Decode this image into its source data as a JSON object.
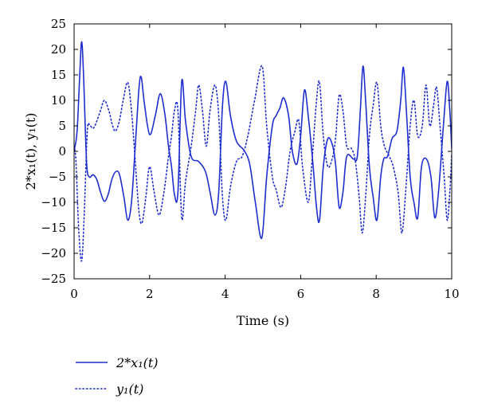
{
  "chart_data": {
    "type": "line",
    "xlabel": "Time (s)",
    "ylabel": "2*x₁(t), y₁(t)",
    "xlim": [
      0,
      10
    ],
    "ylim": [
      -25,
      25
    ],
    "x_ticks": [
      "0",
      "2",
      "4",
      "6",
      "8",
      "10"
    ],
    "y_ticks": [
      "25",
      "20",
      "15",
      "10",
      "5",
      "0",
      "−5",
      "−10",
      "−15",
      "−20",
      "−25"
    ],
    "grid": false,
    "legend_position": "below",
    "series": [
      {
        "name": "2*x₁(t)",
        "style": "solid",
        "color": "#1f2fcf",
        "points": [
          [
            0.0,
            0.0
          ],
          [
            0.08,
            4.0
          ],
          [
            0.15,
            15.0
          ],
          [
            0.2,
            21.5
          ],
          [
            0.25,
            15.0
          ],
          [
            0.33,
            -2.0
          ],
          [
            0.4,
            -5.0
          ],
          [
            0.5,
            -4.6
          ],
          [
            0.6,
            -5.5
          ],
          [
            0.7,
            -8.0
          ],
          [
            0.8,
            -9.8
          ],
          [
            0.9,
            -8.5
          ],
          [
            1.0,
            -5.5
          ],
          [
            1.1,
            -4.0
          ],
          [
            1.2,
            -4.5
          ],
          [
            1.32,
            -9.0
          ],
          [
            1.42,
            -13.5
          ],
          [
            1.52,
            -10.0
          ],
          [
            1.62,
            1.0
          ],
          [
            1.72,
            12.5
          ],
          [
            1.78,
            14.5
          ],
          [
            1.86,
            9.5
          ],
          [
            2.0,
            3.3
          ],
          [
            2.15,
            7.0
          ],
          [
            2.28,
            11.3
          ],
          [
            2.4,
            7.5
          ],
          [
            2.5,
            1.0
          ],
          [
            2.58,
            -3.0
          ],
          [
            2.66,
            -8.5
          ],
          [
            2.75,
            -8.0
          ],
          [
            2.85,
            13.7
          ],
          [
            2.95,
            6.0
          ],
          [
            3.1,
            -1.0
          ],
          [
            3.3,
            -2.0
          ],
          [
            3.48,
            -4.0
          ],
          [
            3.6,
            -8.0
          ],
          [
            3.73,
            -12.5
          ],
          [
            3.83,
            -8.0
          ],
          [
            3.93,
            9.0
          ],
          [
            4.02,
            13.7
          ],
          [
            4.14,
            7.0
          ],
          [
            4.3,
            2.0
          ],
          [
            4.5,
            0.2
          ],
          [
            4.65,
            -2.5
          ],
          [
            4.8,
            -10.0
          ],
          [
            4.97,
            -17.0
          ],
          [
            5.1,
            -5.0
          ],
          [
            5.25,
            5.0
          ],
          [
            5.35,
            7.0
          ],
          [
            5.45,
            8.5
          ],
          [
            5.55,
            10.5
          ],
          [
            5.68,
            7.0
          ],
          [
            5.78,
            0.0
          ],
          [
            5.9,
            -2.5
          ],
          [
            6.0,
            3.0
          ],
          [
            6.1,
            12.0
          ],
          [
            6.2,
            7.0
          ],
          [
            6.32,
            -2.0
          ],
          [
            6.42,
            -11.0
          ],
          [
            6.5,
            -13.5
          ],
          [
            6.6,
            -3.0
          ],
          [
            6.72,
            2.5
          ],
          [
            6.85,
            1.0
          ],
          [
            6.93,
            -3.0
          ],
          [
            7.02,
            -11.0
          ],
          [
            7.12,
            -8.0
          ],
          [
            7.22,
            -1.0
          ],
          [
            7.4,
            -1.5
          ],
          [
            7.5,
            -1.0
          ],
          [
            7.58,
            8.0
          ],
          [
            7.65,
            16.7
          ],
          [
            7.72,
            10.0
          ],
          [
            7.82,
            -3.0
          ],
          [
            7.92,
            -9.0
          ],
          [
            8.02,
            -13.5
          ],
          [
            8.12,
            -5.0
          ],
          [
            8.2,
            -1.5
          ],
          [
            8.3,
            -1.0
          ],
          [
            8.42,
            2.5
          ],
          [
            8.55,
            4.0
          ],
          [
            8.65,
            10.0
          ],
          [
            8.72,
            16.5
          ],
          [
            8.8,
            8.0
          ],
          [
            8.9,
            -5.0
          ],
          [
            9.0,
            -10.0
          ],
          [
            9.1,
            -13.0
          ],
          [
            9.2,
            -3.0
          ],
          [
            9.33,
            -1.5
          ],
          [
            9.45,
            -5.0
          ],
          [
            9.55,
            -13.0
          ],
          [
            9.65,
            -8.0
          ],
          [
            9.78,
            5.0
          ],
          [
            9.88,
            13.7
          ],
          [
            9.95,
            8.0
          ],
          [
            10.0,
            0.5
          ]
        ]
      },
      {
        "name": "y₁(t)",
        "style": "dotted",
        "color": "#1f2fcf",
        "points": [
          [
            0.0,
            1.0
          ],
          [
            0.05,
            -2.0
          ],
          [
            0.12,
            -15.0
          ],
          [
            0.2,
            -21.5
          ],
          [
            0.27,
            -12.0
          ],
          [
            0.35,
            4.0
          ],
          [
            0.42,
            5.0
          ],
          [
            0.5,
            4.5
          ],
          [
            0.58,
            5.5
          ],
          [
            0.7,
            8.0
          ],
          [
            0.8,
            10.0
          ],
          [
            0.92,
            8.0
          ],
          [
            1.02,
            5.0
          ],
          [
            1.1,
            4.0
          ],
          [
            1.2,
            6.0
          ],
          [
            1.3,
            10.0
          ],
          [
            1.42,
            13.5
          ],
          [
            1.52,
            8.0
          ],
          [
            1.62,
            -2.0
          ],
          [
            1.72,
            -12.0
          ],
          [
            1.8,
            -14.0
          ],
          [
            1.9,
            -9.0
          ],
          [
            2.0,
            -3.0
          ],
          [
            2.12,
            -8.0
          ],
          [
            2.25,
            -12.5
          ],
          [
            2.38,
            -8.0
          ],
          [
            2.5,
            -1.0
          ],
          [
            2.58,
            3.0
          ],
          [
            2.66,
            8.0
          ],
          [
            2.75,
            8.0
          ],
          [
            2.85,
            -13.0
          ],
          [
            2.95,
            -6.0
          ],
          [
            3.1,
            1.0
          ],
          [
            3.22,
            8.0
          ],
          [
            3.3,
            13.0
          ],
          [
            3.4,
            8.0
          ],
          [
            3.5,
            1.0
          ],
          [
            3.6,
            8.0
          ],
          [
            3.73,
            13.0
          ],
          [
            3.83,
            7.0
          ],
          [
            3.93,
            -9.0
          ],
          [
            4.02,
            -13.5
          ],
          [
            4.14,
            -7.0
          ],
          [
            4.3,
            -2.0
          ],
          [
            4.45,
            -1.0
          ],
          [
            4.6,
            3.0
          ],
          [
            4.78,
            10.0
          ],
          [
            4.98,
            16.7
          ],
          [
            5.1,
            5.0
          ],
          [
            5.25,
            -5.0
          ],
          [
            5.35,
            -7.5
          ],
          [
            5.48,
            -11.0
          ],
          [
            5.6,
            -7.0
          ],
          [
            5.72,
            0.0
          ],
          [
            5.85,
            4.0
          ],
          [
            5.95,
            6.0
          ],
          [
            6.05,
            -3.0
          ],
          [
            6.2,
            -10.0
          ],
          [
            6.3,
            -2.0
          ],
          [
            6.42,
            10.0
          ],
          [
            6.5,
            13.5
          ],
          [
            6.6,
            3.0
          ],
          [
            6.72,
            -3.0
          ],
          [
            6.85,
            -1.0
          ],
          [
            6.93,
            3.0
          ],
          [
            7.02,
            11.0
          ],
          [
            7.12,
            8.0
          ],
          [
            7.22,
            1.0
          ],
          [
            7.35,
            0.5
          ],
          [
            7.45,
            -2.0
          ],
          [
            7.55,
            -9.0
          ],
          [
            7.63,
            -16.0
          ],
          [
            7.72,
            -9.0
          ],
          [
            7.82,
            3.0
          ],
          [
            7.92,
            9.0
          ],
          [
            8.02,
            13.5
          ],
          [
            8.12,
            5.0
          ],
          [
            8.22,
            1.0
          ],
          [
            8.35,
            -1.0
          ],
          [
            8.45,
            -3.0
          ],
          [
            8.58,
            -8.0
          ],
          [
            8.68,
            -16.0
          ],
          [
            8.78,
            -8.0
          ],
          [
            8.9,
            5.0
          ],
          [
            9.0,
            10.0
          ],
          [
            9.1,
            3.0
          ],
          [
            9.22,
            5.0
          ],
          [
            9.32,
            13.0
          ],
          [
            9.42,
            5.0
          ],
          [
            9.52,
            9.0
          ],
          [
            9.6,
            12.5
          ],
          [
            9.7,
            4.0
          ],
          [
            9.8,
            -5.0
          ],
          [
            9.88,
            -13.5
          ],
          [
            9.95,
            -8.0
          ],
          [
            10.0,
            -0.5
          ]
        ]
      }
    ]
  }
}
